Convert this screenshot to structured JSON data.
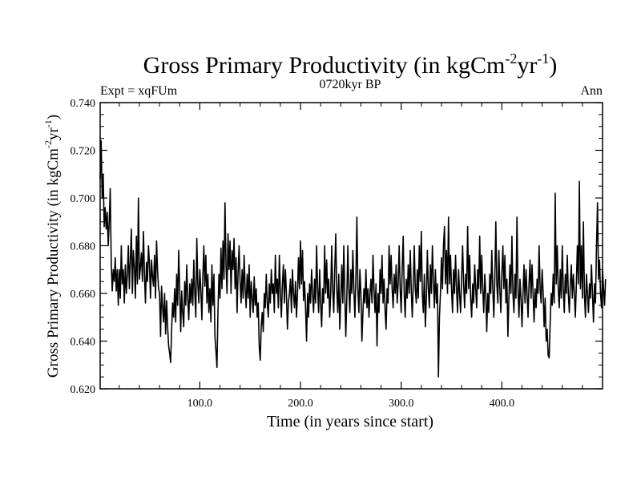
{
  "chart_data": {
    "type": "line",
    "title": "Gross Primary Productivity (in kgCm",
    "title_sup1": "-2",
    "title_mid": "yr",
    "title_sup2": "-1",
    "title_end": ")",
    "subtitle_left": "Expt = xqFUm",
    "subtitle_center": "0720kyr BP",
    "subtitle_right": "Ann",
    "xlabel": "Time (in years since start)",
    "ylabel": "Gross Primary Productivity (in kgCm",
    "ylabel_sup1": "-2",
    "ylabel_mid": "yr",
    "ylabel_sup2": "-1",
    "ylabel_end": ")",
    "xlim": [
      1,
      500
    ],
    "ylim": [
      0.62,
      0.74
    ],
    "xticks": [
      "100.0",
      "200.0",
      "300.0",
      "400.0"
    ],
    "xtick_values": [
      100,
      200,
      300,
      400
    ],
    "yticks": [
      "0.620",
      "0.640",
      "0.660",
      "0.680",
      "0.700",
      "0.720",
      "0.740"
    ],
    "ytick_values": [
      0.62,
      0.64,
      0.66,
      0.68,
      0.7,
      0.72,
      0.74
    ],
    "grid": false,
    "x_start": 1,
    "x_step": 1,
    "values": [
      0.708,
      0.724,
      0.7,
      0.71,
      0.688,
      0.696,
      0.687,
      0.694,
      0.68,
      0.69,
      0.704,
      0.673,
      0.661,
      0.67,
      0.665,
      0.675,
      0.661,
      0.67,
      0.655,
      0.67,
      0.658,
      0.68,
      0.664,
      0.67,
      0.656,
      0.672,
      0.66,
      0.668,
      0.68,
      0.662,
      0.674,
      0.687,
      0.66,
      0.678,
      0.671,
      0.658,
      0.684,
      0.664,
      0.7,
      0.666,
      0.671,
      0.677,
      0.665,
      0.686,
      0.668,
      0.656,
      0.673,
      0.665,
      0.68,
      0.672,
      0.658,
      0.674,
      0.667,
      0.663,
      0.676,
      0.658,
      0.682,
      0.67,
      0.662,
      0.66,
      0.642,
      0.663,
      0.654,
      0.648,
      0.66,
      0.643,
      0.657,
      0.646,
      0.638,
      0.635,
      0.631,
      0.645,
      0.656,
      0.65,
      0.662,
      0.648,
      0.668,
      0.655,
      0.678,
      0.662,
      0.644,
      0.661,
      0.652,
      0.646,
      0.665,
      0.655,
      0.672,
      0.658,
      0.649,
      0.664,
      0.656,
      0.666,
      0.655,
      0.674,
      0.66,
      0.65,
      0.683,
      0.664,
      0.656,
      0.67,
      0.662,
      0.649,
      0.667,
      0.68,
      0.663,
      0.676,
      0.656,
      0.668,
      0.652,
      0.662,
      0.648,
      0.672,
      0.655,
      0.668,
      0.642,
      0.636,
      0.629,
      0.652,
      0.668,
      0.658,
      0.679,
      0.662,
      0.682,
      0.666,
      0.698,
      0.672,
      0.66,
      0.685,
      0.67,
      0.682,
      0.66,
      0.678,
      0.67,
      0.683,
      0.662,
      0.675,
      0.652,
      0.669,
      0.68,
      0.665,
      0.656,
      0.67,
      0.658,
      0.676,
      0.662,
      0.654,
      0.668,
      0.658,
      0.672,
      0.65,
      0.665,
      0.658,
      0.652,
      0.667,
      0.655,
      0.662,
      0.65,
      0.656,
      0.638,
      0.632,
      0.646,
      0.652,
      0.644,
      0.66,
      0.654,
      0.668,
      0.656,
      0.65,
      0.664,
      0.656,
      0.67,
      0.66,
      0.664,
      0.652,
      0.676,
      0.66,
      0.666,
      0.654,
      0.676,
      0.66,
      0.65,
      0.664,
      0.672,
      0.656,
      0.67,
      0.66,
      0.645,
      0.656,
      0.66,
      0.666,
      0.652,
      0.67,
      0.66,
      0.654,
      0.665,
      0.65,
      0.66,
      0.675,
      0.662,
      0.682,
      0.664,
      0.678,
      0.657,
      0.665,
      0.654,
      0.64,
      0.66,
      0.65,
      0.664,
      0.656,
      0.67,
      0.66,
      0.652,
      0.666,
      0.656,
      0.68,
      0.662,
      0.652,
      0.67,
      0.656,
      0.646,
      0.662,
      0.656,
      0.68,
      0.66,
      0.674,
      0.658,
      0.666,
      0.65,
      0.66,
      0.68,
      0.662,
      0.652,
      0.67,
      0.685,
      0.662,
      0.652,
      0.668,
      0.645,
      0.658,
      0.672,
      0.656,
      0.68,
      0.66,
      0.642,
      0.658,
      0.68,
      0.662,
      0.652,
      0.67,
      0.66,
      0.678,
      0.662,
      0.65,
      0.666,
      0.692,
      0.662,
      0.652,
      0.67,
      0.66,
      0.64,
      0.652,
      0.662,
      0.656,
      0.67,
      0.654,
      0.662,
      0.65,
      0.66,
      0.666,
      0.656,
      0.676,
      0.662,
      0.652,
      0.664,
      0.638,
      0.66,
      0.652,
      0.67,
      0.66,
      0.676,
      0.656,
      0.666,
      0.653,
      0.645,
      0.662,
      0.656,
      0.68,
      0.664,
      0.676,
      0.662,
      0.654,
      0.668,
      0.66,
      0.672,
      0.656,
      0.664,
      0.68,
      0.662,
      0.652,
      0.67,
      0.684,
      0.66,
      0.65,
      0.666,
      0.658,
      0.672,
      0.66,
      0.678,
      0.662,
      0.65,
      0.664,
      0.68,
      0.662,
      0.656,
      0.67,
      0.658,
      0.68,
      0.665,
      0.686,
      0.66,
      0.652,
      0.668,
      0.646,
      0.658,
      0.678,
      0.662,
      0.654,
      0.672,
      0.66,
      0.68,
      0.665,
      0.654,
      0.67,
      0.656,
      0.664,
      0.625,
      0.65,
      0.66,
      0.675,
      0.662,
      0.68,
      0.688,
      0.664,
      0.678,
      0.66,
      0.692,
      0.664,
      0.676,
      0.662,
      0.652,
      0.67,
      0.66,
      0.676,
      0.662,
      0.652,
      0.67,
      0.66,
      0.652,
      0.666,
      0.68,
      0.664,
      0.654,
      0.668,
      0.66,
      0.688,
      0.662,
      0.676,
      0.658,
      0.65,
      0.664,
      0.656,
      0.672,
      0.662,
      0.654,
      0.67,
      0.662,
      0.684,
      0.66,
      0.676,
      0.662,
      0.652,
      0.668,
      0.66,
      0.644,
      0.66,
      0.652,
      0.668,
      0.66,
      0.678,
      0.662,
      0.65,
      0.666,
      0.69,
      0.664,
      0.656,
      0.678,
      0.662,
      0.652,
      0.668,
      0.68,
      0.662,
      0.676,
      0.656,
      0.666,
      0.642,
      0.658,
      0.672,
      0.66,
      0.684,
      0.66,
      0.652,
      0.668,
      0.658,
      0.692,
      0.662,
      0.65,
      0.666,
      0.658,
      0.646,
      0.66,
      0.672,
      0.656,
      0.67,
      0.66,
      0.65,
      0.664,
      0.674,
      0.658,
      0.672,
      0.66,
      0.648,
      0.662,
      0.654,
      0.666,
      0.66,
      0.68,
      0.662,
      0.656,
      0.67,
      0.66,
      0.646,
      0.658,
      0.64,
      0.645,
      0.634,
      0.633,
      0.648,
      0.66,
      0.655,
      0.668,
      0.656,
      0.702,
      0.664,
      0.68,
      0.662,
      0.654,
      0.67,
      0.658,
      0.68,
      0.662,
      0.652,
      0.668,
      0.66,
      0.676,
      0.66,
      0.652,
      0.664,
      0.672,
      0.658,
      0.668,
      0.66,
      0.65,
      0.664,
      0.68,
      0.664,
      0.707,
      0.662,
      0.68,
      0.658,
      0.69,
      0.66,
      0.65,
      0.668,
      0.66,
      0.652,
      0.664,
      0.658,
      0.672,
      0.66,
      0.648,
      0.664,
      0.656,
      0.68,
      0.698,
      0.666,
      0.674,
      0.66,
      0.654,
      0.67,
      0.662,
      0.655,
      0.666
    ]
  }
}
